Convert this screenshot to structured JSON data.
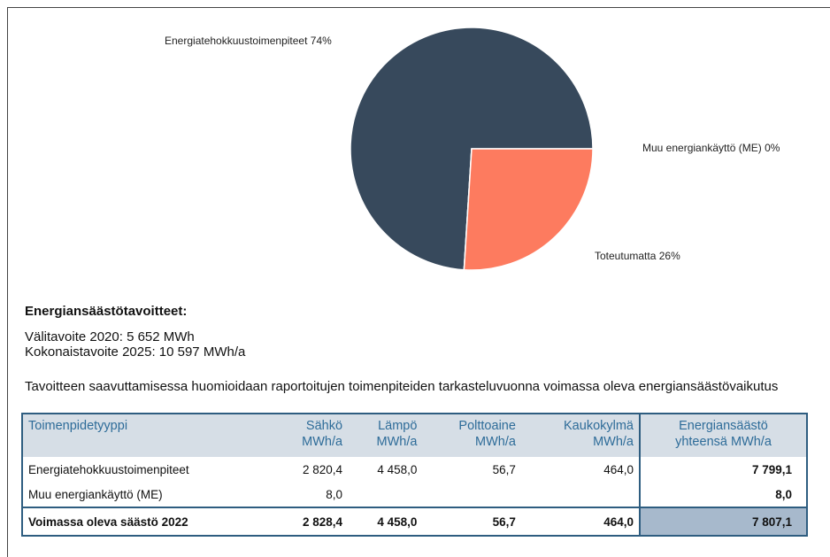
{
  "chart_data": {
    "type": "pie",
    "categories": [
      "Energiatehokkuustoimenpiteet",
      "Muu energiankäyttö (ME)",
      "Toteutumatta"
    ],
    "values": [
      74,
      0,
      26
    ],
    "value_labels": [
      "74%",
      "0%",
      "26%"
    ],
    "colors": [
      "#37495c",
      "#8bb4d9",
      "#fd7b5f"
    ]
  },
  "targets": {
    "heading": "Energiansäästötavoitteet:",
    "lines": [
      "Välitavoite 2020: 5 652 MWh",
      "Kokonaistavoite 2025: 10 597 MWh/a"
    ],
    "note": "Tavoitteen saavuttamisessa huomioidaan raportoitujen toimenpiteiden tarkasteluvuonna voimassa oleva energiansäästövaikutus"
  },
  "table": {
    "header": [
      "Toimenpidetyyppi",
      "Sähkö\nMWh/a",
      "Lämpö\nMWh/a",
      "Polttoaine\nMWh/a",
      "Kaukokylmä\nMWh/a",
      "Energiansäästö\nyhteensä MWh/a"
    ],
    "rows": [
      [
        "Energiatehokkuustoimenpiteet",
        "2 820,4",
        "4 458,0",
        "56,7",
        "464,0",
        "7 799,1"
      ],
      [
        "Muu energiankäyttö (ME)",
        "8,0",
        null,
        null,
        null,
        "8,0"
      ]
    ],
    "total": [
      "Voimassa oleva säästö 2022",
      "2 828,4",
      "4 458,0",
      "56,7",
      "464,0",
      "7 807,1"
    ]
  }
}
